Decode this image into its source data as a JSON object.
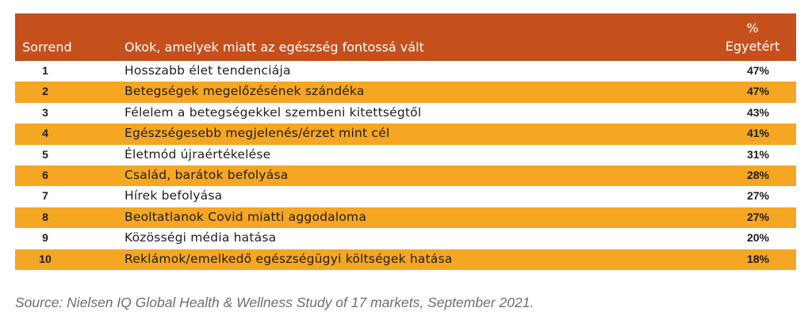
{
  "header": {
    "rank_label": "Sorrend",
    "reason_label": "Okok, amelyek miatt az egészség fontossá vált",
    "pct_symbol": "%",
    "pct_label": "Egyetért"
  },
  "rows": [
    {
      "rank": "1",
      "reason": "Hosszabb élet tendenciája",
      "pct": "47%"
    },
    {
      "rank": "2",
      "reason": "Betegségek megelőzésének szándéka",
      "pct": "47%"
    },
    {
      "rank": "3",
      "reason": "Félelem a betegségekkel szembeni kitettségtől",
      "pct": "43%"
    },
    {
      "rank": "4",
      "reason": "Egészségesebb megjelenés/érzet mint cél",
      "pct": "41%"
    },
    {
      "rank": "5",
      "reason": "Életmód újraértékelése",
      "pct": "31%"
    },
    {
      "rank": "6",
      "reason": "Család, barátok befolyása",
      "pct": "28%"
    },
    {
      "rank": "7",
      "reason": "Hírek befolyása",
      "pct": "27%"
    },
    {
      "rank": "8",
      "reason": "Beoltatlanok Covid miatti aggodaloma",
      "pct": "27%"
    },
    {
      "rank": "9",
      "reason": "Közösségi média hatása",
      "pct": "20%"
    },
    {
      "rank": "10",
      "reason": "Reklámok/emelkedő egészségügyi költségek hatása",
      "pct": "18%"
    }
  ],
  "source": "Source: Nielsen IQ Global Health & Wellness Study of 17  markets, September 2021.",
  "colors": {
    "header_bg": "#c5501c",
    "stripe": "#f5a623"
  }
}
